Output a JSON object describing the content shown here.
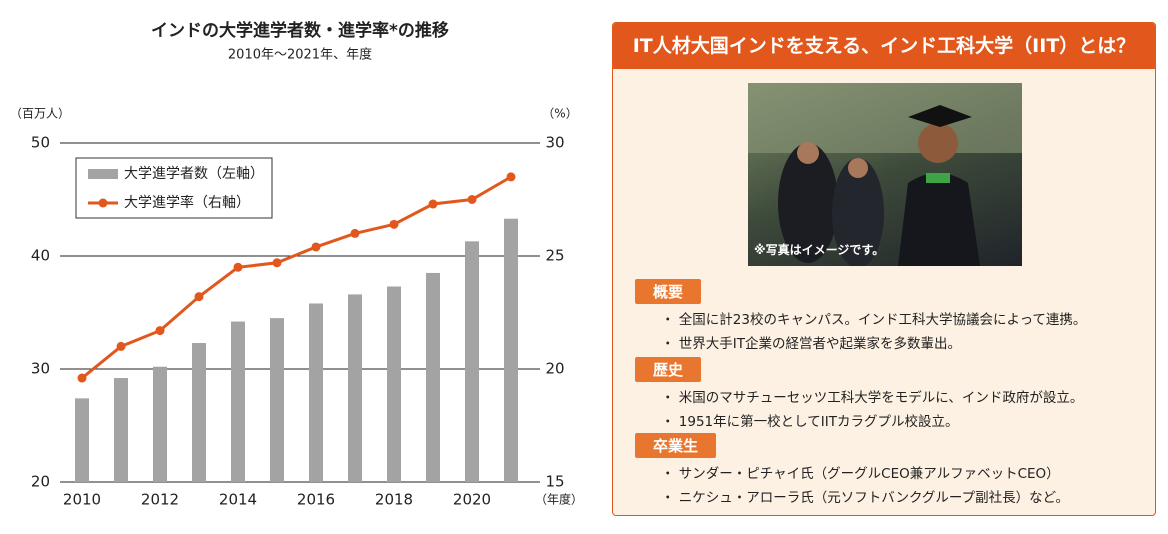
{
  "chart_data": {
    "type": "combo",
    "title": "インドの大学進学者数・進学率*の推移",
    "subtitle": "2010年～2021年、年度",
    "y_label": "（百万人）",
    "y2_label": "（%）",
    "x_label": "（年度）",
    "categories": [
      "2010",
      null,
      "2012",
      null,
      "2014",
      null,
      "2016",
      null,
      "2018",
      null,
      "2020",
      null
    ],
    "series": [
      {
        "name": "大学進学者数（左軸）",
        "type": "bar",
        "color": "#a3a3a3",
        "axis": "y",
        "values": [
          27.4,
          29.2,
          30.2,
          32.3,
          34.2,
          34.5,
          35.8,
          36.6,
          37.3,
          38.5,
          41.3,
          43.3
        ]
      },
      {
        "name": "大学進学率（右軸）",
        "type": "line",
        "color": "#e2571c",
        "axis": "y2",
        "values": [
          19.6,
          21.0,
          21.7,
          23.2,
          24.5,
          24.7,
          25.4,
          26.0,
          26.4,
          27.3,
          27.5,
          28.5
        ]
      }
    ],
    "ylim": [
      20,
      50
    ],
    "yticks": [
      20,
      30,
      40,
      50
    ],
    "y2lim": [
      15,
      30
    ],
    "y2ticks": [
      15,
      20,
      25,
      30
    ],
    "grid": true,
    "legend": "top-left"
  },
  "panel": {
    "title": "IT人材大国インドを支える、インド工科大学（IIT）とは？",
    "photo_caption": "※写真はイメージです。",
    "sections": [
      {
        "heading": "概要",
        "items": [
          "・ 全国に計23校のキャンパス。インド工科大学協議会によって連携。",
          "・ 世界大手IT企業の経営者や起業家を多数輩出。"
        ]
      },
      {
        "heading": "歴史",
        "items": [
          "・ 米国のマサチューセッツ工科大学をモデルに、インド政府が設立。",
          "・ 1951年に第一校としてIITカラグプル校設立。"
        ]
      },
      {
        "heading": "卒業生",
        "items": [
          "・ サンダー・ピチャイ氏（グーグルCEO兼アルファベットCEO）",
          "・ ニケシュ・アローラ氏（元ソフトバンクグループ副社長）など。"
        ]
      }
    ]
  }
}
